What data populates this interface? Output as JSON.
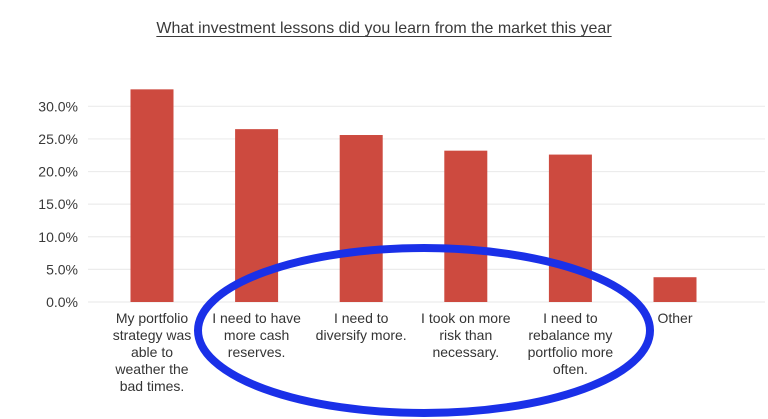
{
  "page": {
    "background_color": "#ffffff"
  },
  "chart_data": {
    "type": "bar",
    "title": "What investment lessons did you learn from the market this year",
    "title_underlined": true,
    "categories": [
      "My portfolio strategy was able to weather the bad times.",
      "I need to have more cash reserves.",
      "I need to diversify more.",
      "I took on more risk than necessary.",
      "I need to rebalance my portfolio more often.",
      "Other"
    ],
    "category_display_lines": [
      "My portfolio\nstrategy was\nable to\nweather the\nbad times.",
      "I need to have\nmore cash\nreserves.",
      "I need to\ndiversify more.",
      "I took on more\nrisk than\nnecessary.",
      "I need to\nrebalance my\nportfolio more\noften.",
      "Other"
    ],
    "values": [
      32.6,
      26.5,
      25.6,
      23.2,
      22.6,
      3.8
    ],
    "value_unit": "%",
    "xlabel": "",
    "ylabel": "",
    "ylim": [
      0,
      33
    ],
    "yticks": [
      0,
      5,
      10,
      15,
      20,
      25,
      30
    ],
    "ytick_labels": [
      "0.0%",
      "5.0%",
      "10.0%",
      "15.0%",
      "20.0%",
      "25.0%",
      "30.0%"
    ],
    "grid": "horizontal",
    "legend": "none",
    "colors": {
      "bar": "#cd4a3f",
      "gridline": "#ececec",
      "text": "#3a3a3a",
      "annotation": "#1a30e8"
    },
    "annotation": {
      "type": "ellipse",
      "color": "#1a30e8",
      "highlighted_category_indexes": [
        1,
        2,
        3,
        4
      ],
      "description": "Hand-drawn style blue ellipse circling the middle four category labels"
    }
  }
}
